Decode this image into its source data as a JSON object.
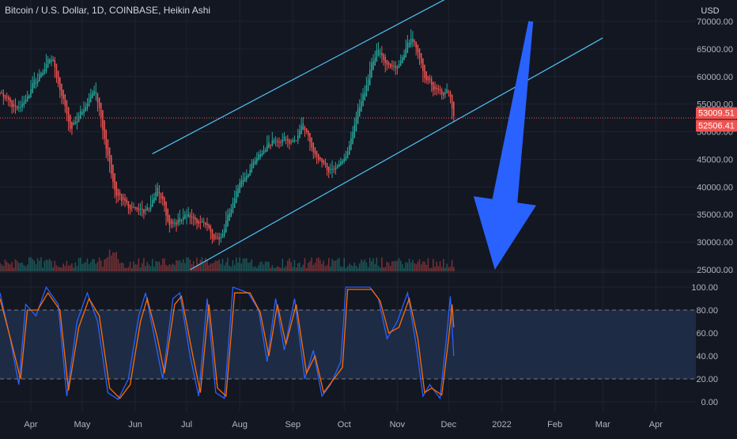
{
  "header": {
    "title": "Bitcoin / U.S. Dollar, 1D, COINBASE, Heikin Ashi"
  },
  "colors": {
    "background": "#131722",
    "grid": "#1f2330",
    "bull": "#26a69a",
    "bear": "#ef5350",
    "channel": "#4fc3f7",
    "arrow": "#2962ff",
    "k_line": "#2962ff",
    "d_line": "#ff6d00",
    "stoch_band": "#1e2b44",
    "current_price_line": "#ef5350"
  },
  "icons": {
    "arrow": "down-arrow-icon"
  },
  "chart_data": [
    {
      "type": "candlestick",
      "style": "Heikin Ashi",
      "currency": "USD",
      "yticks": [
        "70000.00",
        "65000.00",
        "60000.00",
        "55000.00",
        "50000.00",
        "45000.00",
        "40000.00",
        "35000.00",
        "30000.00",
        "25000.00"
      ],
      "ylim": [
        25000,
        71500
      ],
      "xticks": [
        "Apr",
        "May",
        "Jun",
        "Jul",
        "Aug",
        "Sep",
        "Oct",
        "Nov",
        "Dec",
        "2022",
        "Feb",
        "Mar",
        "Apr"
      ],
      "xrange": [
        "2021-03-14",
        "2022-04-23"
      ],
      "grid": true,
      "price_labels": [
        {
          "text": "53009.51",
          "value": 53009.51
        },
        {
          "text": "52506.41",
          "value": 52506.41
        }
      ],
      "anchors": [
        [
          "2021-03-14",
          57000
        ],
        [
          "2021-03-24",
          53500
        ],
        [
          "2021-04-03",
          59000
        ],
        [
          "2021-04-13",
          63500
        ],
        [
          "2021-04-24",
          50000
        ],
        [
          "2021-05-08",
          58000
        ],
        [
          "2021-05-13",
          50000
        ],
        [
          "2021-05-20",
          39000
        ],
        [
          "2021-05-27",
          36500
        ],
        [
          "2021-06-07",
          35500
        ],
        [
          "2021-06-14",
          39500
        ],
        [
          "2021-06-21",
          32500
        ],
        [
          "2021-06-29",
          35000
        ],
        [
          "2021-07-07",
          34000
        ],
        [
          "2021-07-20",
          30000
        ],
        [
          "2021-07-31",
          40500
        ],
        [
          "2021-08-14",
          46500
        ],
        [
          "2021-08-21",
          49000
        ],
        [
          "2021-09-01",
          48000
        ],
        [
          "2021-09-07",
          51500
        ],
        [
          "2021-09-12",
          46500
        ],
        [
          "2021-09-21",
          43000
        ],
        [
          "2021-10-01",
          45000
        ],
        [
          "2021-10-10",
          55000
        ],
        [
          "2021-10-20",
          65500
        ],
        [
          "2021-10-25",
          61500
        ],
        [
          "2021-11-01",
          61500
        ],
        [
          "2021-11-09",
          67500
        ],
        [
          "2021-11-16",
          60500
        ],
        [
          "2021-11-22",
          57500
        ],
        [
          "2021-11-28",
          56500
        ],
        [
          "2021-12-01",
          57500
        ],
        [
          "2021-12-04",
          52506.41
        ]
      ],
      "channel_lines": [
        {
          "name": "upper",
          "start": [
            "2021-06-11",
            46000
          ],
          "end": [
            "2021-11-29",
            74000
          ]
        },
        {
          "name": "lower",
          "start": [
            "2021-07-03",
            25000
          ],
          "end": [
            "2022-03-01",
            67000
          ]
        }
      ],
      "annotation_arrow": {
        "from": [
          "2022-01-18",
          70000
        ],
        "to": [
          "2021-12-28",
          25000
        ],
        "direction": "down"
      }
    },
    {
      "type": "line",
      "indicator": "Stochastic",
      "ylim": [
        -5,
        105
      ],
      "yticks": [
        "100.00",
        "80.00",
        "60.00",
        "40.00",
        "20.00",
        "0.00"
      ],
      "bands": [
        20,
        80
      ],
      "series": [
        {
          "color": "#2962ff",
          "points": [
            [
              "2021-03-14",
              95
            ],
            [
              "2021-03-20",
              55
            ],
            [
              "2021-03-25",
              15
            ],
            [
              "2021-03-29",
              85
            ],
            [
              "2021-04-04",
              75
            ],
            [
              "2021-04-10",
              100
            ],
            [
              "2021-04-17",
              85
            ],
            [
              "2021-04-22",
              5
            ],
            [
              "2021-04-28",
              70
            ],
            [
              "2021-05-04",
              95
            ],
            [
              "2021-05-10",
              70
            ],
            [
              "2021-05-16",
              8
            ],
            [
              "2021-05-22",
              2
            ],
            [
              "2021-05-28",
              20
            ],
            [
              "2021-06-03",
              75
            ],
            [
              "2021-06-07",
              95
            ],
            [
              "2021-06-13",
              50
            ],
            [
              "2021-06-17",
              20
            ],
            [
              "2021-06-23",
              90
            ],
            [
              "2021-06-27",
              95
            ],
            [
              "2021-07-03",
              40
            ],
            [
              "2021-07-08",
              5
            ],
            [
              "2021-07-13",
              90
            ],
            [
              "2021-07-18",
              8
            ],
            [
              "2021-07-23",
              3
            ],
            [
              "2021-07-28",
              100
            ],
            [
              "2021-08-06",
              95
            ],
            [
              "2021-08-12",
              80
            ],
            [
              "2021-08-17",
              35
            ],
            [
              "2021-08-22",
              90
            ],
            [
              "2021-08-27",
              45
            ],
            [
              "2021-09-02",
              90
            ],
            [
              "2021-09-08",
              20
            ],
            [
              "2021-09-13",
              45
            ],
            [
              "2021-09-18",
              5
            ],
            [
              "2021-09-23",
              15
            ],
            [
              "2021-09-29",
              35
            ],
            [
              "2021-10-02",
              100
            ],
            [
              "2021-10-16",
              100
            ],
            [
              "2021-10-21",
              90
            ],
            [
              "2021-10-26",
              55
            ],
            [
              "2021-11-01",
              70
            ],
            [
              "2021-11-07",
              95
            ],
            [
              "2021-11-12",
              50
            ],
            [
              "2021-11-16",
              5
            ],
            [
              "2021-11-20",
              15
            ],
            [
              "2021-11-26",
              3
            ],
            [
              "2021-11-30",
              60
            ],
            [
              "2021-12-02",
              92
            ],
            [
              "2021-12-04",
              40
            ]
          ]
        },
        {
          "color": "#ff6d00",
          "points": [
            [
              "2021-03-14",
              90
            ],
            [
              "2021-03-21",
              50
            ],
            [
              "2021-03-26",
              20
            ],
            [
              "2021-03-30",
              80
            ],
            [
              "2021-04-05",
              80
            ],
            [
              "2021-04-11",
              95
            ],
            [
              "2021-04-18",
              80
            ],
            [
              "2021-04-23",
              10
            ],
            [
              "2021-04-29",
              65
            ],
            [
              "2021-05-05",
              90
            ],
            [
              "2021-05-11",
              75
            ],
            [
              "2021-05-17",
              12
            ],
            [
              "2021-05-23",
              3
            ],
            [
              "2021-05-29",
              15
            ],
            [
              "2021-06-04",
              70
            ],
            [
              "2021-06-08",
              90
            ],
            [
              "2021-06-14",
              55
            ],
            [
              "2021-06-18",
              25
            ],
            [
              "2021-06-24",
              85
            ],
            [
              "2021-06-28",
              92
            ],
            [
              "2021-07-04",
              45
            ],
            [
              "2021-07-09",
              8
            ],
            [
              "2021-07-14",
              85
            ],
            [
              "2021-07-19",
              12
            ],
            [
              "2021-07-24",
              5
            ],
            [
              "2021-07-29",
              95
            ],
            [
              "2021-08-07",
              95
            ],
            [
              "2021-08-13",
              78
            ],
            [
              "2021-08-18",
              40
            ],
            [
              "2021-08-23",
              85
            ],
            [
              "2021-08-28",
              50
            ],
            [
              "2021-09-03",
              85
            ],
            [
              "2021-09-09",
              25
            ],
            [
              "2021-09-14",
              40
            ],
            [
              "2021-09-19",
              8
            ],
            [
              "2021-09-24",
              18
            ],
            [
              "2021-09-30",
              30
            ],
            [
              "2021-10-03",
              98
            ],
            [
              "2021-10-17",
              98
            ],
            [
              "2021-10-22",
              88
            ],
            [
              "2021-10-27",
              60
            ],
            [
              "2021-11-02",
              65
            ],
            [
              "2021-11-08",
              90
            ],
            [
              "2021-11-13",
              55
            ],
            [
              "2021-11-17",
              8
            ],
            [
              "2021-11-21",
              12
            ],
            [
              "2021-11-27",
              6
            ],
            [
              "2021-12-01",
              55
            ],
            [
              "2021-12-03",
              85
            ],
            [
              "2021-12-04",
              65
            ]
          ]
        }
      ]
    }
  ]
}
